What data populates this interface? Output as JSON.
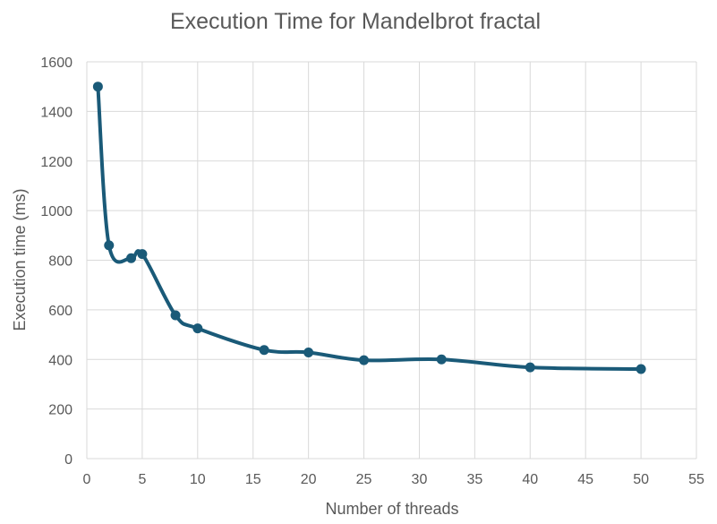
{
  "chart_data": {
    "type": "line",
    "title": "Execution Time for Mandelbrot fractal",
    "xlabel": "Number of threads",
    "ylabel": "Execution time (ms)",
    "xlim": [
      0,
      55
    ],
    "ylim": [
      0,
      1600
    ],
    "x_ticks": [
      "0",
      "5",
      "10",
      "15",
      "20",
      "25",
      "30",
      "35",
      "40",
      "45",
      "50",
      "55"
    ],
    "y_ticks": [
      "0",
      "200",
      "400",
      "600",
      "800",
      "1000",
      "1200",
      "1400",
      "1600"
    ],
    "grid": true,
    "legend": "none",
    "smoothed": true,
    "series": [
      {
        "color": "#1a5a78",
        "x": [
          1,
          2,
          4,
          5,
          8,
          10,
          16,
          20,
          25,
          32,
          40,
          50
        ],
        "y": [
          1500,
          860,
          808,
          825,
          578,
          525,
          438,
          428,
          397,
          400,
          368,
          361
        ]
      }
    ]
  }
}
